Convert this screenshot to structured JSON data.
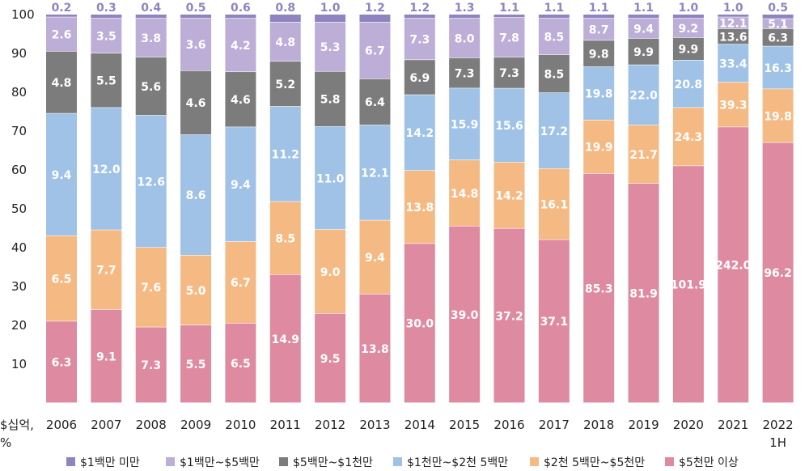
{
  "chart_data": {
    "type": "bar",
    "stacked": true,
    "categories": [
      "2006",
      "2007",
      "2008",
      "2009",
      "2010",
      "2011",
      "2012",
      "2013",
      "2014",
      "2015",
      "2016",
      "2017",
      "2018",
      "2019",
      "2020",
      "2021",
      "2022\n1H"
    ],
    "unit_label": [
      "$십억,",
      "%"
    ],
    "ylim": [
      0,
      100
    ],
    "yticks": [
      10,
      20,
      30,
      40,
      50,
      60,
      70,
      80,
      90,
      100
    ],
    "grid": false,
    "legend_position": "bottom",
    "series": [
      {
        "name": "$5천만 이상",
        "color": "#de8aa0",
        "share": [
          21,
          24,
          19.5,
          20,
          20.5,
          33,
          23,
          28,
          41,
          45.5,
          44.8,
          42,
          59,
          56.5,
          61,
          71,
          67
        ],
        "labels": [
          "6.3",
          "9.1",
          "7.3",
          "5.5",
          "6.5",
          "14.9",
          "9.5",
          "13.8",
          "30.0",
          "39.0",
          "37.2",
          "37.1",
          "85.3",
          "81.9",
          "101.9",
          "242.0",
          "96.2"
        ]
      },
      {
        "name": "$2천 5백만~$5천만",
        "color": "#f5ba84",
        "share": [
          22,
          20.5,
          20.5,
          18,
          21,
          18.8,
          21.6,
          19,
          18.8,
          17,
          17,
          18.3,
          13.8,
          15,
          15,
          11.5,
          13.8
        ],
        "labels": [
          "6.5",
          "7.7",
          "7.6",
          "5.0",
          "6.7",
          "8.5",
          "9.0",
          "9.4",
          "13.8",
          "14.8",
          "14.2",
          "16.1",
          "19.9",
          "21.7",
          "24.3",
          "39.3",
          "19.8"
        ]
      },
      {
        "name": "$1천만~$2천 5백만",
        "color": "#9fc2e6",
        "share": [
          31.5,
          31.5,
          34,
          31,
          29.5,
          24.5,
          26.5,
          24.5,
          19.5,
          18.5,
          19,
          19.5,
          13.7,
          15.5,
          12.2,
          9.8,
          11
        ],
        "labels": [
          "9.4",
          "12.0",
          "12.6",
          "8.6",
          "9.4",
          "11.2",
          "11.0",
          "12.1",
          "14.2",
          "15.9",
          "15.6",
          "17.2",
          "19.8",
          "22.0",
          "20.8",
          "33.4",
          "16.3"
        ]
      },
      {
        "name": "$5백만~$1천만",
        "color": "#7c7c7c",
        "share": [
          16,
          14,
          15,
          16.5,
          14.2,
          11.6,
          14.2,
          11.9,
          9,
          7.8,
          8,
          9.8,
          6.8,
          6.8,
          5.8,
          4,
          4.5
        ],
        "labels": [
          "4.8",
          "5.5",
          "5.6",
          "4.6",
          "4.6",
          "5.2",
          "5.8",
          "6.4",
          "6.9",
          "7.3",
          "7.3",
          "8.5",
          "9.8",
          "9.9",
          "9.9",
          "13.6",
          "6.3"
        ]
      },
      {
        "name": "$1백만~$5백만",
        "color": "#bcaed7",
        "share": [
          8.8,
          9,
          10,
          13.5,
          13.8,
          10.1,
          12.7,
          14.6,
          10.7,
          10.2,
          10.2,
          9.4,
          5.7,
          5.2,
          5,
          3,
          2.6
        ],
        "labels": [
          "2.6",
          "3.5",
          "3.8",
          "3.6",
          "4.2",
          "4.8",
          "5.3",
          "6.7",
          "7.3",
          "8.0",
          "7.8",
          "8.5",
          "8.7",
          "9.4",
          "9.2",
          "12.1",
          "5.1"
        ]
      },
      {
        "name": "$1백만 미만",
        "color": "#8f84c0",
        "share": [
          0.7,
          1,
          1,
          1,
          1,
          2,
          2,
          2,
          1,
          1,
          0.8,
          1,
          1,
          1,
          1,
          0.7,
          1.1
        ],
        "labels": [
          "0.2",
          "0.3",
          "0.4",
          "0.5",
          "0.6",
          "0.8",
          "1.0",
          "1.2",
          "1.2",
          "1.3",
          "1.1",
          "1.1",
          "1.1",
          "1.1",
          "1.0",
          "1.0",
          "0.5"
        ]
      }
    ]
  }
}
